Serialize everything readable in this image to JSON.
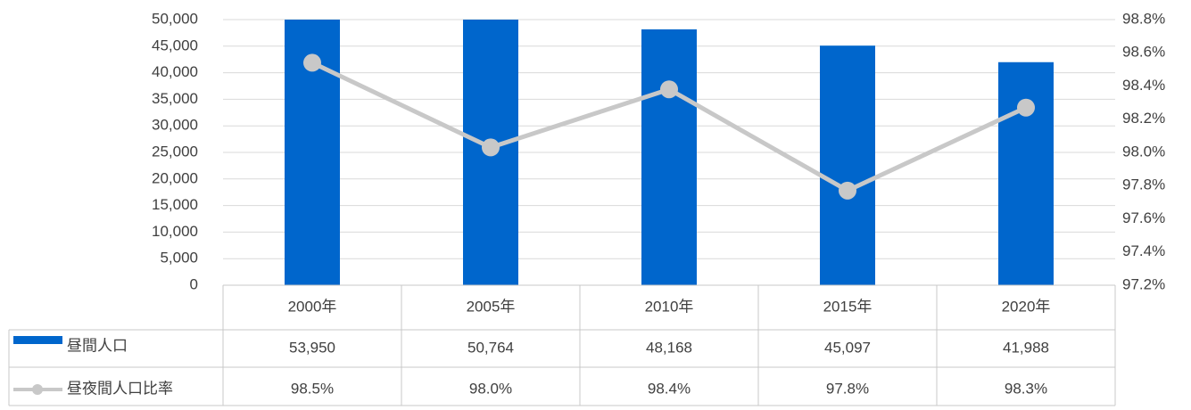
{
  "chart_data": {
    "type": "bar",
    "categories": [
      "2000年",
      "2005年",
      "2010年",
      "2015年",
      "2020年"
    ],
    "series": [
      {
        "name": "昼間人口",
        "color": "#0066cc",
        "values": [
          53950,
          50764,
          48168,
          45097,
          41988
        ],
        "value_labels": [
          "53,950",
          "50,764",
          "48,168",
          "45,097",
          "41,988"
        ]
      },
      {
        "name": "昼夜間人口比率",
        "type": "line",
        "axis": "y2",
        "color": "#c8c8c8",
        "values": [
          98.54,
          98.03,
          98.38,
          97.77,
          98.27
        ],
        "value_labels": [
          "98.5%",
          "98.0%",
          "98.4%",
          "97.8%",
          "98.3%"
        ]
      }
    ],
    "ylim": [
      0,
      50000
    ],
    "yticks": [
      0,
      {
        "value": 5000,
        "label": "5,000"
      },
      {
        "value": 10000,
        "label": "10,000"
      },
      {
        "value": 15000,
        "label": "15,000"
      },
      {
        "value": 20000,
        "label": "20,000"
      },
      {
        "value": 25000,
        "label": "25,000"
      },
      {
        "value": 30000,
        "label": "30,000"
      },
      {
        "value": 35000,
        "label": "35,000"
      },
      {
        "value": 40000,
        "label": "40,000"
      },
      {
        "value": 45000,
        "label": "45,000"
      },
      {
        "value": 50000,
        "label": "50,000"
      }
    ],
    "y2lim": [
      97.2,
      98.8
    ],
    "y2ticks": [
      {
        "value": 97.2,
        "label": "97.2%"
      },
      {
        "value": 97.4,
        "label": "97.4%"
      },
      {
        "value": 97.6,
        "label": "97.6%"
      },
      {
        "value": 97.8,
        "label": "97.8%"
      },
      {
        "value": 98.0,
        "label": "98.0%"
      },
      {
        "value": 98.2,
        "label": "98.2%"
      },
      {
        "value": 98.4,
        "label": "98.4%"
      },
      {
        "value": 98.6,
        "label": "98.6%"
      },
      {
        "value": 98.8,
        "label": "98.8%"
      }
    ],
    "grid": true
  }
}
